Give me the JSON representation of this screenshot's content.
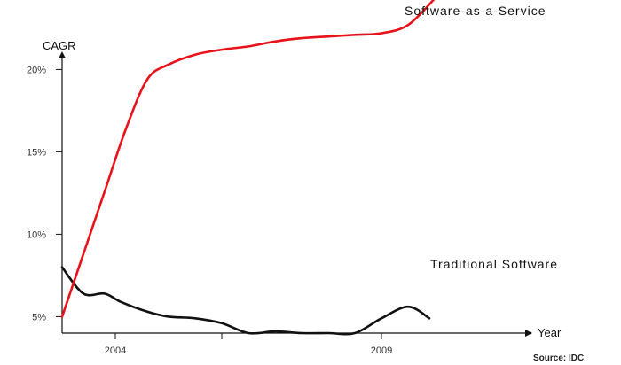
{
  "chart_data": {
    "type": "line",
    "ylabel": "CAGR",
    "xlabel": "Year",
    "source": "Source: IDC",
    "x_tick_labels": [
      {
        "x": 2004,
        "label": "2004"
      },
      {
        "x": 2009,
        "label": "2009"
      }
    ],
    "x_tick_marks": [
      2004,
      2006,
      2009
    ],
    "y_ticks": [
      {
        "y": 5,
        "label": "5%"
      },
      {
        "y": 10,
        "label": "10%"
      },
      {
        "y": 15,
        "label": "15%"
      },
      {
        "y": 20,
        "label": "20%"
      }
    ],
    "xlim": [
      2003.0,
      2012.5
    ],
    "ylim": [
      4.0,
      24.0
    ],
    "grid": false,
    "series": [
      {
        "name": "Software-as-a-Service",
        "color": "#e8121a",
        "x": [
          2003.0,
          2003.4,
          2003.8,
          2004.2,
          2004.6,
          2005.0,
          2005.5,
          2006.0,
          2006.5,
          2007.0,
          2007.5,
          2008.0,
          2008.5,
          2009.0,
          2009.5,
          2010.0
        ],
        "y": [
          5.0,
          8.8,
          12.6,
          16.4,
          19.4,
          20.3,
          20.9,
          21.2,
          21.4,
          21.7,
          21.9,
          22.0,
          22.1,
          22.2,
          22.7,
          24.3
        ]
      },
      {
        "name": "Traditional Software",
        "color": "#111111",
        "x": [
          2003.0,
          2003.4,
          2003.8,
          2004.1,
          2004.6,
          2005.0,
          2005.5,
          2006.0,
          2006.5,
          2007.0,
          2007.5,
          2008.0,
          2008.5,
          2009.0,
          2009.5,
          2009.9
        ],
        "y": [
          8.0,
          6.4,
          6.4,
          5.9,
          5.3,
          5.0,
          4.9,
          4.6,
          4.0,
          4.1,
          4.0,
          4.0,
          4.0,
          4.9,
          5.6,
          4.9
        ]
      }
    ]
  }
}
